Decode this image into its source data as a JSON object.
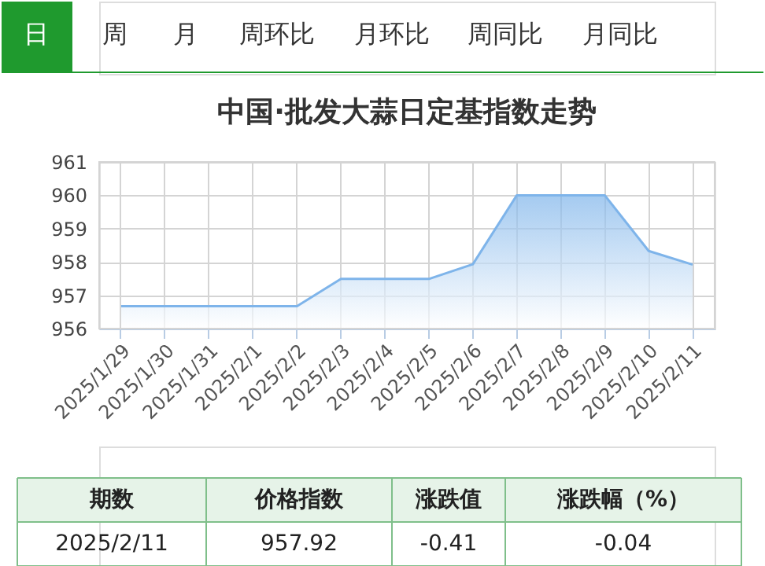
{
  "chart_data": {
    "type": "area",
    "title": "中国·批发大蒜日定基指数走势",
    "categories": [
      "2025/1/29",
      "2025/1/30",
      "2025/1/31",
      "2025/2/1",
      "2025/2/2",
      "2025/2/3",
      "2025/2/4",
      "2025/2/5",
      "2025/2/6",
      "2025/2/7",
      "2025/2/8",
      "2025/2/9",
      "2025/2/10",
      "2025/2/11"
    ],
    "series": [
      {
        "color": "#7eb4ea",
        "values": [
          956.67,
          956.67,
          956.67,
          956.67,
          956.67,
          957.49,
          957.49,
          957.49,
          957.93,
          960.0,
          960.0,
          960.0,
          958.33,
          957.92
        ]
      }
    ],
    "ylim": [
      956,
      961
    ],
    "yticks": [
      956,
      957,
      958,
      959,
      960,
      961
    ],
    "grid": true,
    "annotations": [
      "日",
      "周",
      "月",
      "周环比",
      "月环比",
      "周同比",
      "月同比",
      "期数",
      "价格指数",
      "涨跌值",
      "涨跌幅（%）",
      "2025/2/11",
      "957.92",
      "-0.41",
      "-0.04"
    ]
  }
}
